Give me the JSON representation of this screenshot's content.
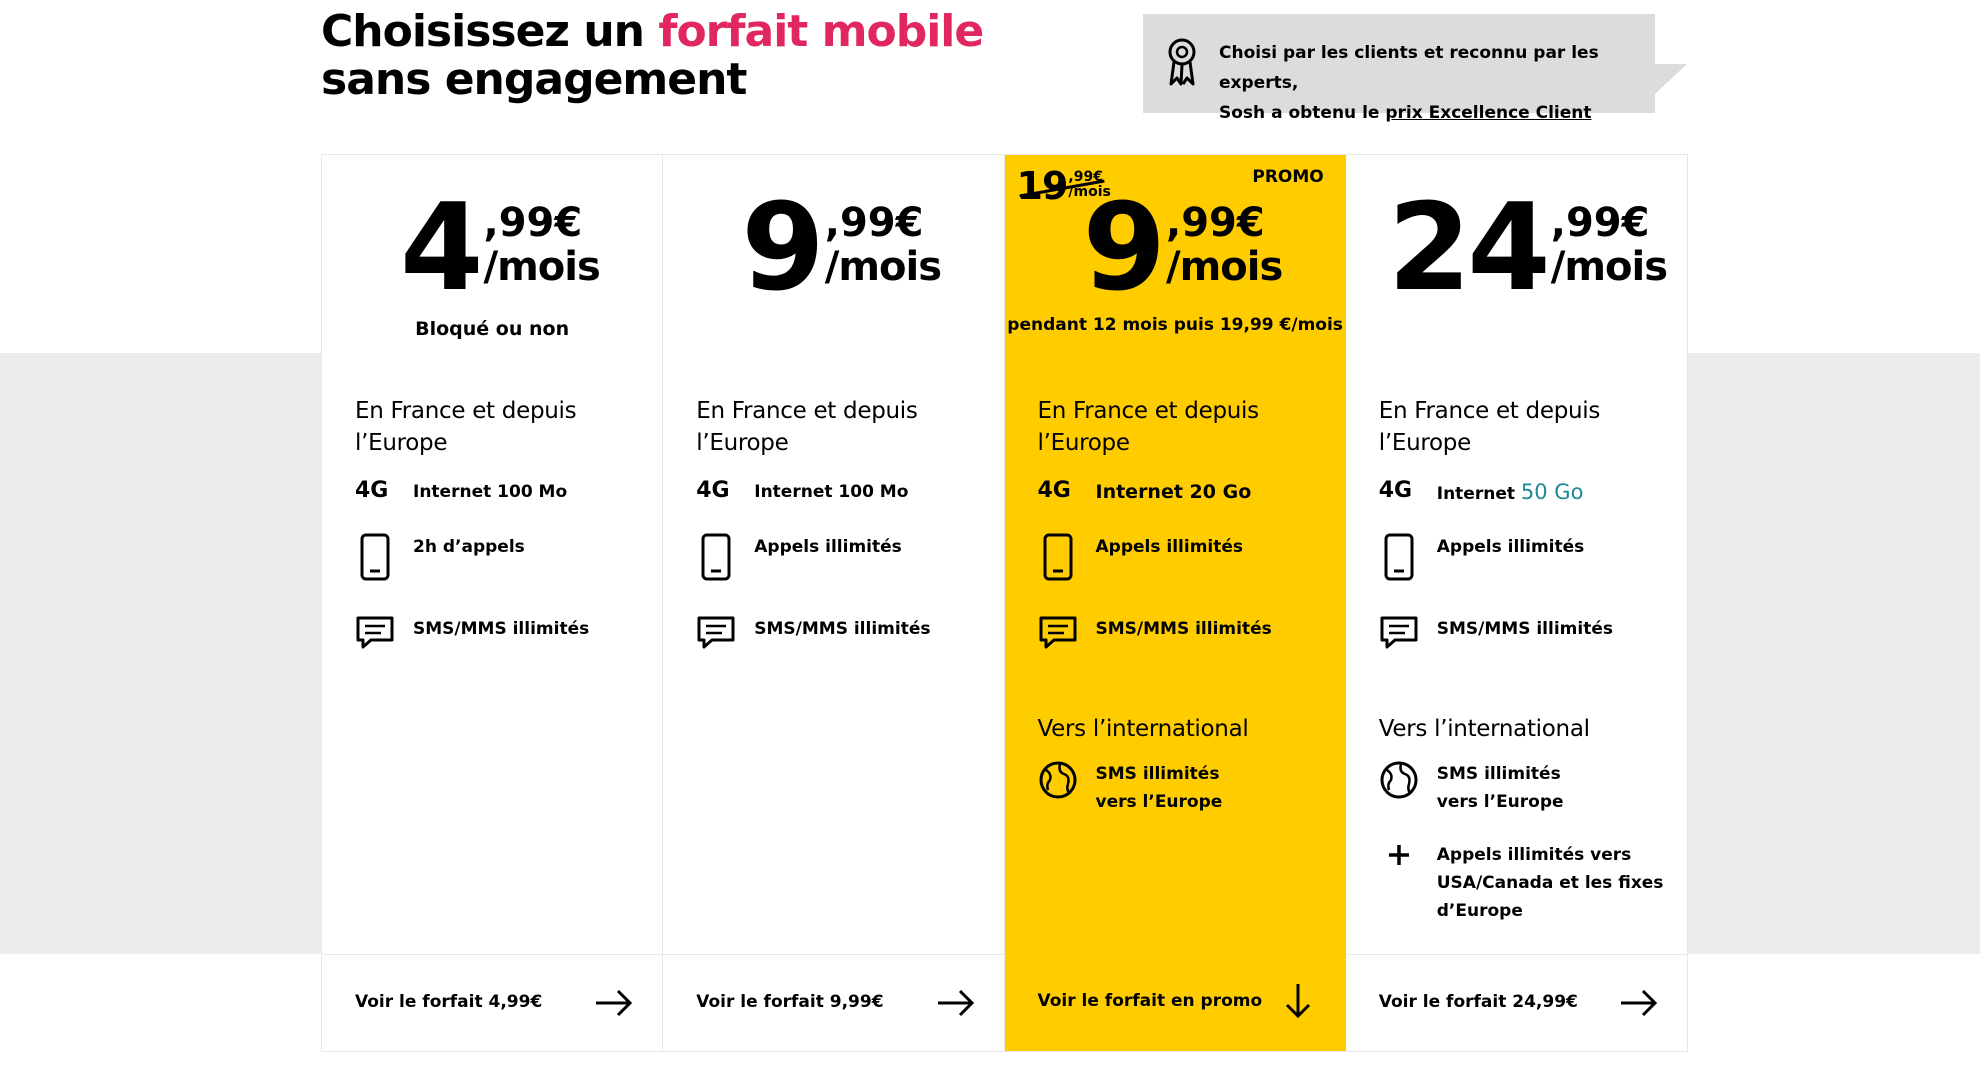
{
  "header": {
    "title_part1": "Choisissez un ",
    "title_accent": "forfait mobile",
    "title_line2": "sans engagement",
    "accent_color": "#e0275f"
  },
  "award": {
    "icon": "award-ribbon-icon",
    "line1": "Choisi par les clients et reconnu par les experts,",
    "line2_prefix": "Sosh a obtenu le ",
    "link": "prix Excellence Client"
  },
  "plans": [
    {
      "price_int": "4",
      "price_dec": ",99€",
      "price_per": "/mois",
      "price_sub": "Bloqué ou non",
      "section_france": "En France et depuis l’Europe",
      "network": "4G",
      "internet_prefix": "Internet ",
      "internet_value": "100 Mo",
      "calls": "2h d’appels",
      "sms": "SMS/MMS illimités",
      "cta": "Voir le forfait 4,99€"
    },
    {
      "price_int": "9",
      "price_dec": ",99€",
      "price_per": "/mois",
      "section_france": "En France et depuis l’Europe",
      "network": "4G",
      "internet_prefix": "Internet ",
      "internet_value": "100 Mo",
      "calls": "Appels illimités",
      "sms": "SMS/MMS illimités",
      "cta": "Voir le forfait 9,99€"
    },
    {
      "promo_label": "PROMO",
      "old_int": "19",
      "old_dec": ",99€",
      "old_per": "/mois",
      "price_int": "9",
      "price_dec": ",99€",
      "price_per": "/mois",
      "price_sub": "pendant 12 mois puis 19,99 €/mois",
      "section_france": "En France et depuis l’Europe",
      "network": "4G",
      "internet_prefix": "Internet ",
      "internet_value": "20 Go",
      "calls": "Appels illimités",
      "sms": "SMS/MMS illimités",
      "section_intl": "Vers l’international",
      "intl_sms": "SMS illimités vers l’Europe",
      "cta": "Voir le forfait en promo",
      "bg_color": "#ffcc00"
    },
    {
      "price_int": "24",
      "price_dec": ",99€",
      "price_per": "/mois",
      "section_france": "En France et depuis l’Europe",
      "network": "4G",
      "internet_prefix": "Internet ",
      "internet_value": "50 Go",
      "internet_value_color": "#1d8a95",
      "calls": "Appels illimités",
      "sms": "SMS/MMS illimités",
      "section_intl": "Vers l’international",
      "intl_sms": "SMS illimités vers l’Europe",
      "intl_calls": "Appels illimités vers USA/Canada et les fixes d’Europe",
      "cta": "Voir le forfait 24,99€"
    }
  ]
}
